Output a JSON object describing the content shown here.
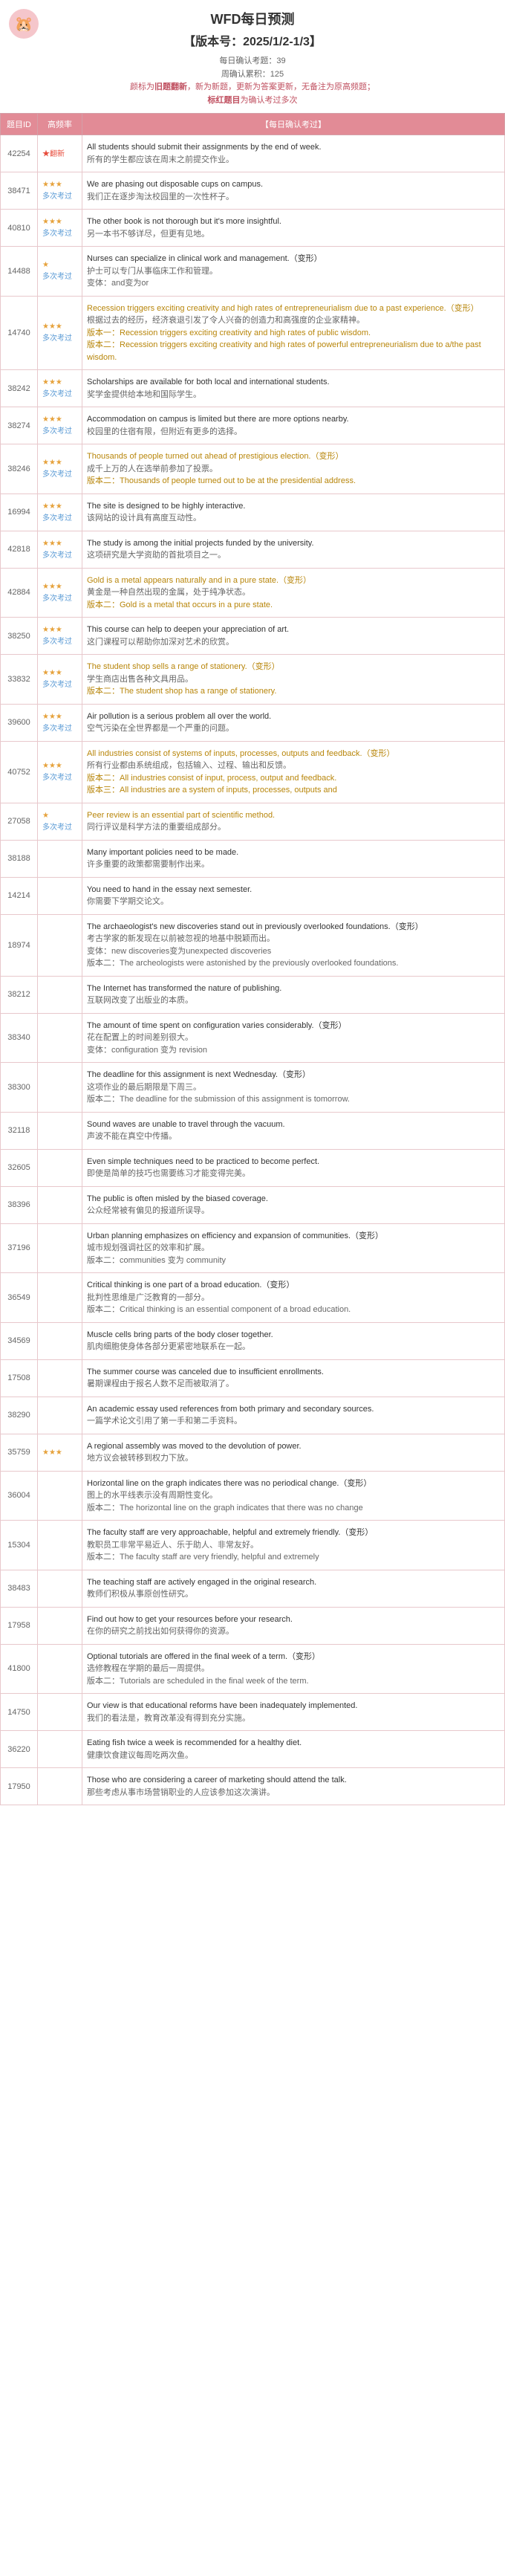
{
  "header": {
    "title": "WFD每日预测",
    "version": "【版本号：2025/1/2-1/3】",
    "meta1": "每日确认考题：39",
    "meta2": "周确认累积：125",
    "meta3_pre": "颜标为",
    "meta3_red": "旧题翻新",
    "meta3_mid": "，新为新题，更新为答案更新，无备注为原高频题；",
    "meta4_red": "标红题目",
    "meta4_post": "为确认考过多次"
  },
  "cols": {
    "id": "题目ID",
    "freq": "高频率",
    "content": "【每日确认考过】"
  },
  "rows": [
    {
      "id": "42254",
      "stars": "★",
      "freq": "翻新",
      "en": "All students should submit their assignments by the end of week.",
      "zh": "所有的学生都应该在周末之前提交作业。",
      "new": true
    },
    {
      "id": "38471",
      "stars": "★★★",
      "freq": "多次考过",
      "en": "We are phasing out disposable cups on campus.",
      "zh": "我们正在逐步淘汰校园里的一次性杯子。"
    },
    {
      "id": "40810",
      "stars": "★★★",
      "freq": "多次考过",
      "en": "The other book is not thorough but it's more insightful.",
      "zh": "另一本书不够详尽，但更有见地。"
    },
    {
      "id": "14488",
      "stars": "★",
      "freq": "多次考过",
      "en": "Nurses can specialize in clinical work and management.（变形）",
      "zh": "护士可以专门从事临床工作和管理。",
      "var": "变体：and变为or"
    },
    {
      "id": "14740",
      "stars": "★★★",
      "freq": "多次考过",
      "en": "Recession triggers exciting creativity and high rates of entrepreneurialism due to a past experience.（变形）",
      "zh": "根据过去的经历，经济衰退引发了令人兴奋的创造力和高强度的企业家精神。",
      "var": "版本一：Recession triggers exciting creativity and high rates of public wisdom.\n版本二：Recession triggers exciting creativity and high rates of powerful entrepreneurialism due to a/the past wisdom.",
      "varColor": true
    },
    {
      "id": "38242",
      "stars": "★★★",
      "freq": "多次考过",
      "en": "Scholarships are available for both local and international students.",
      "zh": "奖学金提供给本地和国际学生。"
    },
    {
      "id": "38274",
      "stars": "★★★",
      "freq": "多次考过",
      "en": "Accommodation on campus is limited but there are more options nearby.",
      "zh": "校园里的住宿有限，但附近有更多的选择。"
    },
    {
      "id": "38246",
      "stars": "★★★",
      "freq": "多次考过",
      "en": "Thousands of people turned out ahead of prestigious election.（变形）",
      "zh": "成千上万的人在选举前参加了投票。",
      "var": "版本二：Thousands of people turned out to be at the presidential address.",
      "varColor": true
    },
    {
      "id": "16994",
      "stars": "★★★",
      "freq": "多次考过",
      "en": "The site is designed to be highly interactive.",
      "zh": "该网站的设计具有高度互动性。"
    },
    {
      "id": "42818",
      "stars": "★★★",
      "freq": "多次考过",
      "en": "The study is among the initial projects funded by the university.",
      "zh": "这项研究是大学资助的首批项目之一。"
    },
    {
      "id": "42884",
      "stars": "★★★",
      "freq": "多次考过",
      "en": "Gold is a metal appears naturally and in a pure state.（变形）",
      "zh": "黄金是一种自然出现的金属，处于纯净状态。",
      "var": "版本二：Gold is a metal that occurs in a pure state.",
      "varColor": true
    },
    {
      "id": "38250",
      "stars": "★★★",
      "freq": "多次考过",
      "en": "This course can help to deepen your appreciation of art.",
      "zh": "这门课程可以帮助你加深对艺术的欣赏。"
    },
    {
      "id": "33832",
      "stars": "★★★",
      "freq": "多次考过",
      "en": "The student shop sells a range of stationery.（变形）",
      "zh": "学生商店出售各种文具用品。",
      "var": "版本二：The student shop has a range of stationery.",
      "varColor": true
    },
    {
      "id": "39600",
      "stars": "★★★",
      "freq": "多次考过",
      "en": "Air pollution is a serious problem all over the world.",
      "zh": "空气污染在全世界都是一个严重的问题。"
    },
    {
      "id": "40752",
      "stars": "★★★",
      "freq": "多次考过",
      "en": "All industries consist of systems of inputs, processes, outputs and feedback.（变形）",
      "zh": "所有行业都由系统组成，包括输入、过程、输出和反馈。",
      "var": "版本二：All industries consist of input, process, output and feedback.\n版本三：All industries are a system of inputs, processes, outputs and",
      "varColor": true
    },
    {
      "id": "27058",
      "stars": "★",
      "freq": "多次考过",
      "en": "Peer review is an essential part of scientific method.",
      "zh": "同行评议是科学方法的重要组成部分。",
      "enColor": true
    },
    {
      "id": "38188",
      "stars": "",
      "freq": "",
      "en": "Many important policies need to be made.",
      "zh": "许多重要的政策都需要制作出来。"
    },
    {
      "id": "14214",
      "stars": "",
      "freq": "",
      "en": "You need to hand in the essay next semester.",
      "zh": "你需要下学期交论文。"
    },
    {
      "id": "18974",
      "stars": "",
      "freq": "",
      "en": "The archaeologist's new discoveries stand out in previously overlooked foundations.（变形）",
      "zh": "考古学家的新发现在以前被忽视的地基中脱颖而出。",
      "var": "变体：new discoveries变为unexpected discoveries\n版本二：The archeologists were astonished by the previously overlooked foundations."
    },
    {
      "id": "38212",
      "stars": "",
      "freq": "",
      "en": "The Internet has transformed the nature of publishing.",
      "zh": "互联网改变了出版业的本质。"
    },
    {
      "id": "38340",
      "stars": "",
      "freq": "",
      "en": "The amount of time spent on configuration varies considerably.（变形）",
      "zh": "花在配置上的时间差别很大。",
      "var": "变体：configuration 变为 revision"
    },
    {
      "id": "38300",
      "stars": "",
      "freq": "",
      "en": "The deadline for this assignment is next Wednesday.（变形）",
      "zh": "这项作业的最后期限是下周三。",
      "var": "版本二：The deadline for the submission of this assignment is tomorrow."
    },
    {
      "id": "32118",
      "stars": "",
      "freq": "",
      "en": "Sound waves are unable to travel through the vacuum.",
      "zh": "声波不能在真空中传播。"
    },
    {
      "id": "32605",
      "stars": "",
      "freq": "",
      "en": "Even simple techniques need to be practiced to become perfect.",
      "zh": "即使是简单的技巧也需要练习才能变得完美。"
    },
    {
      "id": "38396",
      "stars": "",
      "freq": "",
      "en": "The public is often misled by the biased coverage.",
      "zh": "公众经常被有偏见的报道所误导。"
    },
    {
      "id": "37196",
      "stars": "",
      "freq": "",
      "en": "Urban planning emphasizes on efficiency and expansion of communities.（变形）",
      "zh": "城市规划强调社区的效率和扩展。",
      "var": "版本二：communities 变为 community"
    },
    {
      "id": "36549",
      "stars": "",
      "freq": "",
      "en": "Critical thinking is one part of a broad education.（变形）",
      "zh": "批判性思维是广泛教育的一部分。",
      "var": "版本二：Critical thinking is an essential component of a broad education."
    },
    {
      "id": "34569",
      "stars": "",
      "freq": "",
      "en": "Muscle cells bring parts of the body closer together.",
      "zh": "肌肉细胞使身体各部分更紧密地联系在一起。"
    },
    {
      "id": "17508",
      "stars": "",
      "freq": "",
      "en": "The summer course was canceled due to insufficient enrollments.",
      "zh": "暑期课程由于报名人数不足而被取消了。"
    },
    {
      "id": "38290",
      "stars": "",
      "freq": "",
      "en": "An academic essay used references from both primary and secondary sources.",
      "zh": "一篇学术论文引用了第一手和第二手资料。"
    },
    {
      "id": "35759",
      "stars": "★★★",
      "freq": "",
      "en": "A regional assembly was moved to the devolution of power.",
      "zh": "地方议会被转移到权力下放。"
    },
    {
      "id": "36004",
      "stars": "",
      "freq": "",
      "en": "Horizontal line on the graph indicates there was no periodical change.（变形）",
      "zh": "图上的水平线表示没有周期性变化。",
      "var": "版本二：The horizontal line on the graph indicates that there was no change"
    },
    {
      "id": "15304",
      "stars": "",
      "freq": "",
      "en": "The faculty staff are very approachable, helpful and extremely friendly.（变形）",
      "zh": "教职员工非常平易近人、乐于助人、非常友好。",
      "var": "版本二：The faculty staff are very friendly, helpful and extremely"
    },
    {
      "id": "38483",
      "stars": "",
      "freq": "",
      "en": "The teaching staff are actively engaged in the original research.",
      "zh": "教师们积极从事原创性研究。"
    },
    {
      "id": "17958",
      "stars": "",
      "freq": "",
      "en": "Find out how to get your resources before your research.",
      "zh": "在你的研究之前找出如何获得你的资源。"
    },
    {
      "id": "41800",
      "stars": "",
      "freq": "",
      "en": "Optional tutorials are offered in the final week of a term.（变形）",
      "zh": "选修教程在学期的最后一周提供。",
      "var": "版本二：Tutorials are scheduled in the final week of the term."
    },
    {
      "id": "14750",
      "stars": "",
      "freq": "",
      "en": "Our view is that educational reforms have been inadequately implemented.",
      "zh": "我们的看法是，教育改革没有得到充分实施。"
    },
    {
      "id": "36220",
      "stars": "",
      "freq": "",
      "en": "Eating fish twice a week is recommended for a healthy diet.",
      "zh": "健康饮食建议每周吃两次鱼。"
    },
    {
      "id": "17950",
      "stars": "",
      "freq": "",
      "en": "Those who are considering a career of marketing should attend the talk.",
      "zh": "那些考虑从事市场营销职业的人应该参加这次演讲。"
    }
  ]
}
